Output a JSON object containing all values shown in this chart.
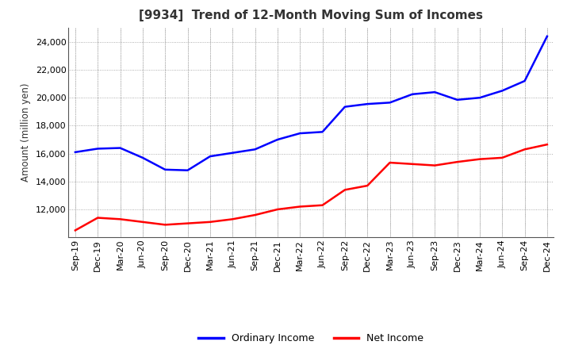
{
  "title": "[9934]  Trend of 12-Month Moving Sum of Incomes",
  "ylabel": "Amount (million yen)",
  "x_labels": [
    "Sep-19",
    "Dec-19",
    "Mar-20",
    "Jun-20",
    "Sep-20",
    "Dec-20",
    "Mar-21",
    "Jun-21",
    "Sep-21",
    "Dec-21",
    "Mar-22",
    "Jun-22",
    "Sep-22",
    "Dec-22",
    "Mar-23",
    "Jun-23",
    "Sep-23",
    "Dec-23",
    "Mar-24",
    "Jun-24",
    "Sep-24",
    "Dec-24"
  ],
  "ordinary_income": [
    16100,
    16350,
    16400,
    15700,
    14850,
    14800,
    15800,
    16050,
    16300,
    17000,
    17450,
    17550,
    19350,
    19550,
    19650,
    20250,
    20400,
    19850,
    20000,
    20500,
    21200,
    24400
  ],
  "net_income": [
    10500,
    11400,
    11300,
    11100,
    10900,
    11000,
    11100,
    11300,
    11600,
    12000,
    12200,
    12300,
    13400,
    13700,
    15350,
    15250,
    15150,
    15400,
    15600,
    15700,
    16300,
    16650
  ],
  "ordinary_color": "#0000FF",
  "net_color": "#FF0000",
  "ylim_min": 10000,
  "ylim_max": 25000,
  "yticks": [
    12000,
    14000,
    16000,
    18000,
    20000,
    22000,
    24000
  ],
  "background_color": "#FFFFFF",
  "plot_bg_color": "#FFFFFF",
  "grid_color": "#999999",
  "line_width": 1.8,
  "title_color": "#333333",
  "title_fontsize": 11,
  "label_fontsize": 8.5,
  "tick_fontsize": 8,
  "legend_fontsize": 9
}
